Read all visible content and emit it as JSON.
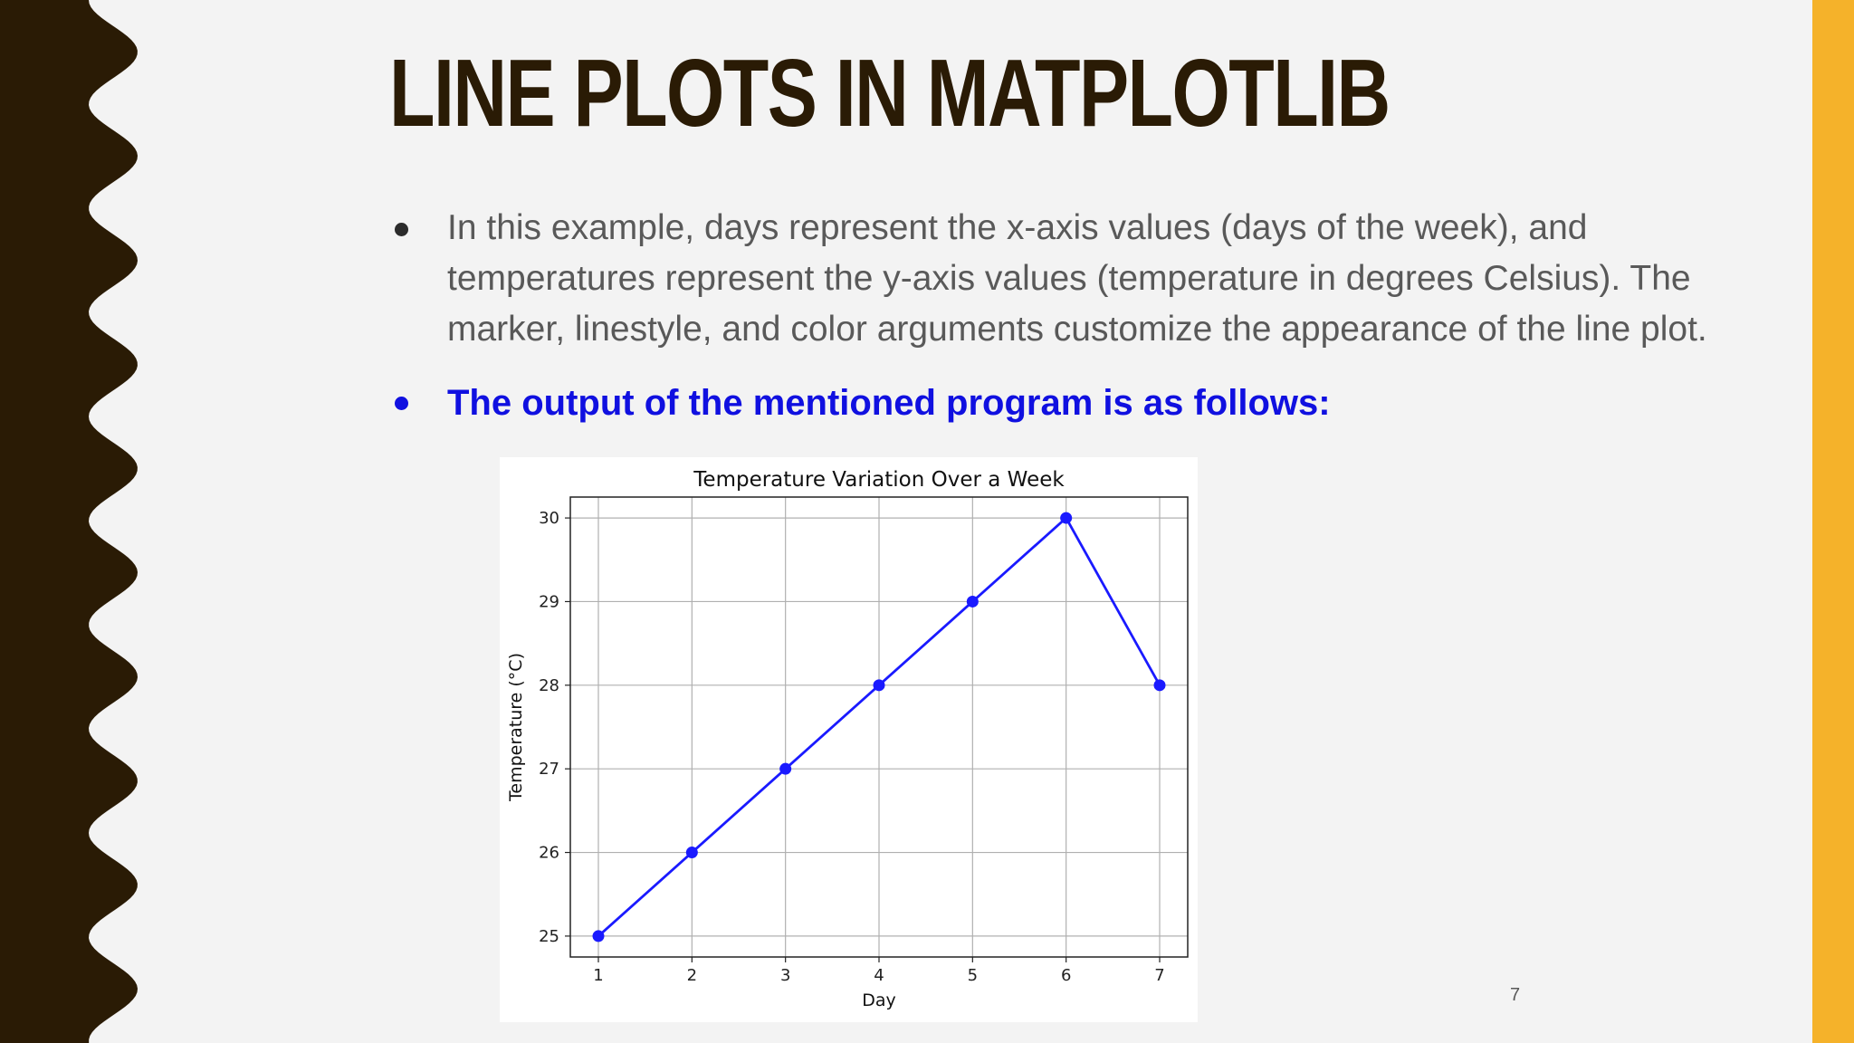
{
  "slide": {
    "title": "LINE PLOTS IN MATPLOTLIB",
    "bullets": [
      "In this example, days represent the x-axis values (days of the week), and temperatures represent the y-axis values (temperature in degrees Celsius). The marker, linestyle, and color arguments customize the appearance of the line plot.",
      "The output of the mentioned program is as follows:"
    ],
    "page_number": "7"
  },
  "colors": {
    "left_band": "#2a1b05",
    "right_accent": "#f5b22a",
    "bullet_highlight": "#1010e0",
    "series_line": "#1a1aff"
  },
  "chart_data": {
    "type": "line",
    "title": "Temperature Variation Over a Week",
    "xlabel": "Day",
    "ylabel": "Temperature (°C)",
    "x": [
      1,
      2,
      3,
      4,
      5,
      6,
      7
    ],
    "series": [
      {
        "values": [
          25,
          26,
          27,
          28,
          29,
          30,
          28
        ],
        "color": "#1a1aff",
        "marker": "circle"
      }
    ],
    "xticks": [
      1,
      2,
      3,
      4,
      5,
      6,
      7
    ],
    "yticks": [
      25,
      26,
      27,
      28,
      29,
      30
    ],
    "xlim": [
      0.7,
      7.3
    ],
    "ylim": [
      24.75,
      30.25
    ],
    "grid": true
  }
}
